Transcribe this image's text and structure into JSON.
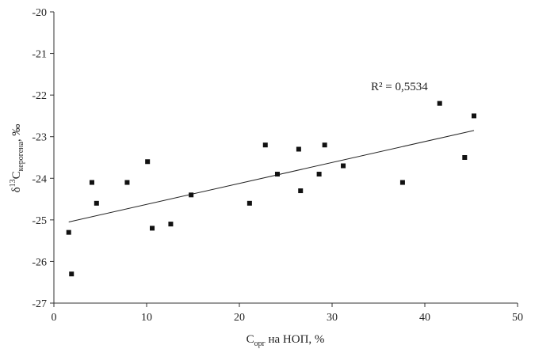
{
  "chart_data": {
    "type": "scatter",
    "xlabel": {
      "main": "C",
      "sub": "орг",
      "rest": " на НОП, %"
    },
    "ylabel": {
      "pre": "δ",
      "sup": "13",
      "main": "C",
      "sub": "керогена",
      "rest": ", ‰"
    },
    "xlim": [
      0,
      50
    ],
    "ylim": [
      -27,
      -20
    ],
    "xticks": [
      0,
      10,
      20,
      30,
      40,
      50
    ],
    "xtick_labels": [
      "0",
      "10",
      "20",
      "30",
      "40",
      "50"
    ],
    "yticks": [
      -27,
      -26,
      -25,
      -24,
      -23,
      -22,
      -21,
      -20
    ],
    "ytick_labels": [
      "-27",
      "-26",
      "-25",
      "-24",
      "-23",
      "-22",
      "-21",
      "-20"
    ],
    "points": [
      {
        "x": 1.6,
        "y": -25.3
      },
      {
        "x": 1.9,
        "y": -26.3
      },
      {
        "x": 4.1,
        "y": -24.1
      },
      {
        "x": 4.6,
        "y": -24.6
      },
      {
        "x": 7.9,
        "y": -24.1
      },
      {
        "x": 10.1,
        "y": -23.6
      },
      {
        "x": 10.6,
        "y": -25.2
      },
      {
        "x": 12.6,
        "y": -25.1
      },
      {
        "x": 14.8,
        "y": -24.4
      },
      {
        "x": 21.1,
        "y": -24.6
      },
      {
        "x": 22.8,
        "y": -23.2
      },
      {
        "x": 24.1,
        "y": -23.9
      },
      {
        "x": 26.4,
        "y": -23.3
      },
      {
        "x": 26.6,
        "y": -24.3
      },
      {
        "x": 28.6,
        "y": -23.9
      },
      {
        "x": 29.2,
        "y": -23.2
      },
      {
        "x": 31.2,
        "y": -23.7
      },
      {
        "x": 37.6,
        "y": -24.1
      },
      {
        "x": 41.6,
        "y": -22.2
      },
      {
        "x": 44.3,
        "y": -23.5
      },
      {
        "x": 45.3,
        "y": -22.5
      }
    ],
    "trendline": {
      "type": "linear",
      "x": [
        1.6,
        45.3
      ],
      "y": [
        -25.05,
        -22.85
      ]
    },
    "annotation": "R² = 0,5534",
    "grid": false,
    "legend": "none"
  }
}
